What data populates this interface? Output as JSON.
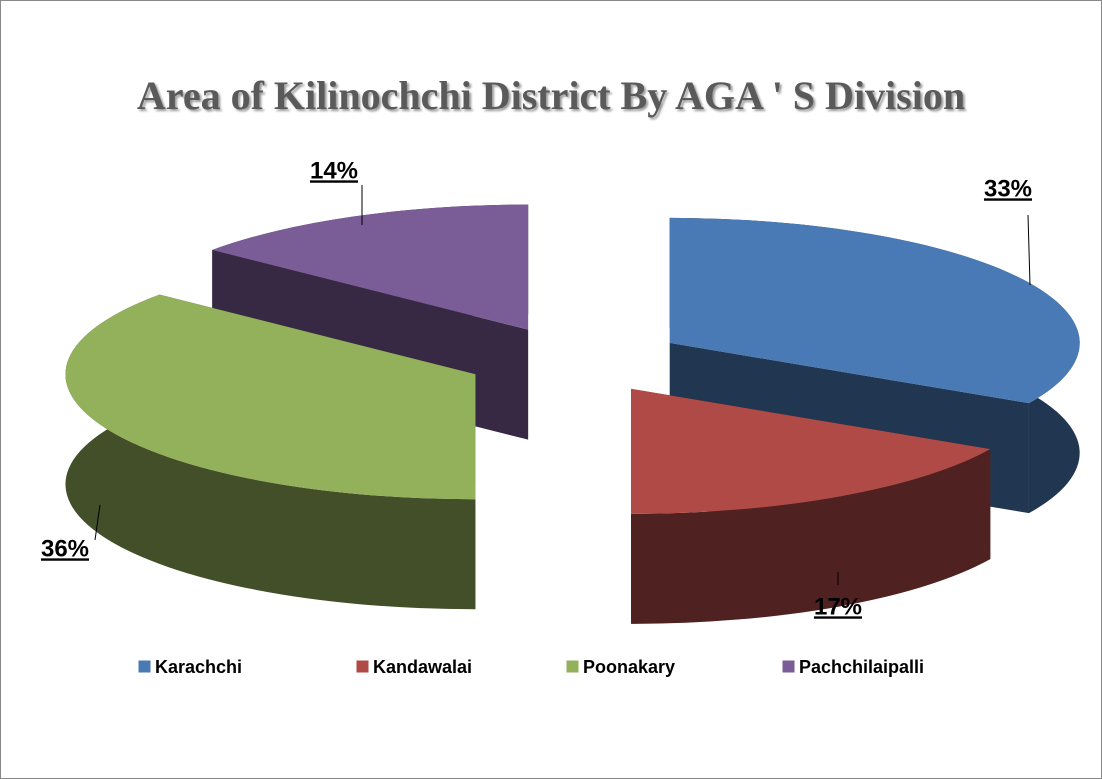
{
  "chart_data": {
    "type": "pie",
    "title": "Area of Kilinochchi District By AGA ' S Division",
    "categories": [
      "Karachchi",
      "Kandawalai",
      "Poonakary",
      "Pachchilaipalli"
    ],
    "values": [
      33,
      17,
      36,
      14
    ],
    "value_labels": [
      "33%",
      "17%",
      "36%",
      "14%"
    ],
    "colors": [
      "#4a7ab5",
      "#b04a46",
      "#93b05a",
      "#7a5c96"
    ],
    "legend": "bottom"
  }
}
